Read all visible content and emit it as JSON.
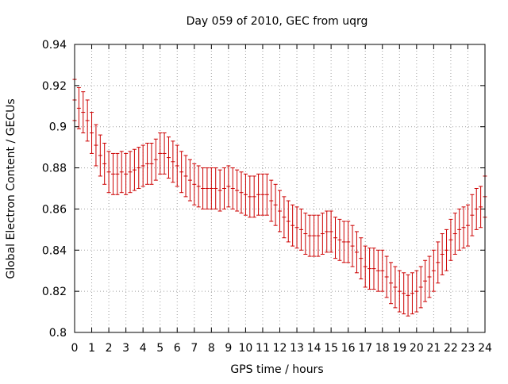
{
  "chart_data": {
    "type": "line",
    "title": "Day 059 of 2010, GEC from uqrg",
    "xlabel": "GPS time / hours",
    "ylabel": "Global Electron Content / GECUs",
    "xlim": [
      0,
      24
    ],
    "ylim": [
      0.8,
      0.94
    ],
    "x_ticks": [
      0,
      1,
      2,
      3,
      4,
      5,
      6,
      7,
      8,
      9,
      10,
      11,
      12,
      13,
      14,
      15,
      16,
      17,
      18,
      19,
      20,
      21,
      22,
      23,
      24
    ],
    "x_tick_labels": [
      "0",
      "1",
      "2",
      "3",
      "4",
      "5",
      "6",
      "7",
      "8",
      "9",
      "10",
      "11",
      "12",
      "13",
      "14",
      "15",
      "16",
      "17",
      "18",
      "19",
      "20",
      "21",
      "22",
      "23",
      "24"
    ],
    "y_ticks": [
      0.8,
      0.82,
      0.84,
      0.86,
      0.88,
      0.9,
      0.92,
      0.94
    ],
    "y_tick_labels": [
      "0.8",
      "0.82",
      "0.84",
      "0.86",
      "0.88",
      "0.9",
      "0.92",
      "0.94"
    ],
    "grid": true,
    "color": "#cc0000",
    "error": 0.01,
    "series": [
      {
        "name": "GEC",
        "x": [
          0,
          0.25,
          0.5,
          0.75,
          1,
          1.25,
          1.5,
          1.75,
          2,
          2.25,
          2.5,
          2.75,
          3,
          3.25,
          3.5,
          3.75,
          4,
          4.25,
          4.5,
          4.75,
          5,
          5.25,
          5.5,
          5.75,
          6,
          6.25,
          6.5,
          6.75,
          7,
          7.25,
          7.5,
          7.75,
          8,
          8.25,
          8.5,
          8.75,
          9,
          9.25,
          9.5,
          9.75,
          10,
          10.25,
          10.5,
          10.75,
          11,
          11.25,
          11.5,
          11.75,
          12,
          12.25,
          12.5,
          12.75,
          13,
          13.25,
          13.5,
          13.75,
          14,
          14.25,
          14.5,
          14.75,
          15,
          15.25,
          15.5,
          15.75,
          16,
          16.25,
          16.5,
          16.75,
          17,
          17.25,
          17.5,
          17.75,
          18,
          18.25,
          18.5,
          18.75,
          19,
          19.25,
          19.5,
          19.75,
          20,
          20.25,
          20.5,
          20.75,
          21,
          21.25,
          21.5,
          21.75,
          22,
          22.25,
          22.5,
          22.75,
          23,
          23.25,
          23.5,
          23.75,
          24
        ],
        "y": [
          0.913,
          0.909,
          0.907,
          0.903,
          0.897,
          0.891,
          0.886,
          0.882,
          0.878,
          0.877,
          0.877,
          0.878,
          0.877,
          0.878,
          0.879,
          0.88,
          0.881,
          0.882,
          0.882,
          0.884,
          0.887,
          0.887,
          0.885,
          0.883,
          0.881,
          0.878,
          0.876,
          0.874,
          0.872,
          0.871,
          0.87,
          0.87,
          0.87,
          0.87,
          0.869,
          0.87,
          0.871,
          0.87,
          0.869,
          0.868,
          0.867,
          0.866,
          0.866,
          0.867,
          0.867,
          0.867,
          0.864,
          0.862,
          0.859,
          0.856,
          0.854,
          0.852,
          0.851,
          0.85,
          0.848,
          0.847,
          0.847,
          0.847,
          0.848,
          0.849,
          0.849,
          0.846,
          0.845,
          0.844,
          0.844,
          0.842,
          0.839,
          0.836,
          0.832,
          0.831,
          0.831,
          0.83,
          0.83,
          0.827,
          0.824,
          0.822,
          0.82,
          0.819,
          0.818,
          0.819,
          0.82,
          0.822,
          0.825,
          0.827,
          0.83,
          0.834,
          0.838,
          0.84,
          0.845,
          0.848,
          0.85,
          0.851,
          0.852,
          0.857,
          0.86,
          0.861,
          0.866
        ]
      }
    ]
  }
}
